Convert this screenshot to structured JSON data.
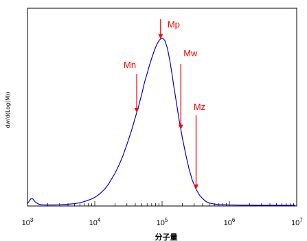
{
  "chart_data": {
    "type": "line",
    "title": "",
    "xlabel": "分子量",
    "ylabel": "dw/d(Log(M))",
    "x_scale": "log",
    "xlim": [
      1000,
      10000000
    ],
    "ylim": [
      0,
      1.0
    ],
    "grid": false,
    "x_ticks": [
      {
        "base": "10",
        "exp": "3",
        "value": 1000
      },
      {
        "base": "10",
        "exp": "4",
        "value": 10000
      },
      {
        "base": "10",
        "exp": "5",
        "value": 100000
      },
      {
        "base": "10",
        "exp": "6",
        "value": 1000000
      },
      {
        "base": "10",
        "exp": "7",
        "value": 10000000
      }
    ],
    "series": [
      {
        "color": "#0000cc",
        "x": [
          1000,
          1050,
          1120,
          1200,
          1300,
          1450,
          1600,
          1800,
          2000,
          2400,
          3000,
          4000,
          5000,
          6000,
          7000,
          8000,
          9000,
          10000,
          11000,
          12000,
          14000,
          16000,
          18000,
          20000,
          23000,
          26000,
          30000,
          35000,
          40000,
          45000,
          50000,
          55000,
          60000,
          65000,
          70000,
          75000,
          80000,
          85000,
          90000,
          95000,
          100000,
          105000,
          110000,
          120000,
          130000,
          140000,
          150000,
          160000,
          180000,
          200000,
          225000,
          250000,
          280000,
          320000,
          360000,
          400000,
          450000,
          500000,
          600000,
          700000,
          800000,
          1000000,
          1500000,
          2000000,
          3000000
        ],
        "y": [
          0.01,
          0.022,
          0.038,
          0.038,
          0.02,
          0.008,
          0.003,
          0.002,
          0.002,
          0.002,
          0.003,
          0.006,
          0.01,
          0.015,
          0.022,
          0.03,
          0.038,
          0.047,
          0.058,
          0.07,
          0.095,
          0.125,
          0.16,
          0.19,
          0.24,
          0.29,
          0.36,
          0.44,
          0.52,
          0.59,
          0.66,
          0.73,
          0.78,
          0.83,
          0.87,
          0.905,
          0.935,
          0.958,
          0.975,
          0.985,
          0.99,
          0.985,
          0.975,
          0.93,
          0.86,
          0.78,
          0.7,
          0.63,
          0.5,
          0.4,
          0.3,
          0.22,
          0.15,
          0.095,
          0.06,
          0.04,
          0.022,
          0.014,
          0.007,
          0.004,
          0.003,
          0.002,
          0.001,
          0.001,
          0.0
        ]
      }
    ],
    "annotations": [
      {
        "label": "Mp",
        "x": 95000,
        "color": "#ff0000"
      },
      {
        "label": "Mn",
        "x": 42000,
        "color": "#ff0000"
      },
      {
        "label": "Mw",
        "x": 190000,
        "color": "#ff0000"
      },
      {
        "label": "Mz",
        "x": 320000,
        "color": "#ff0000"
      }
    ]
  }
}
